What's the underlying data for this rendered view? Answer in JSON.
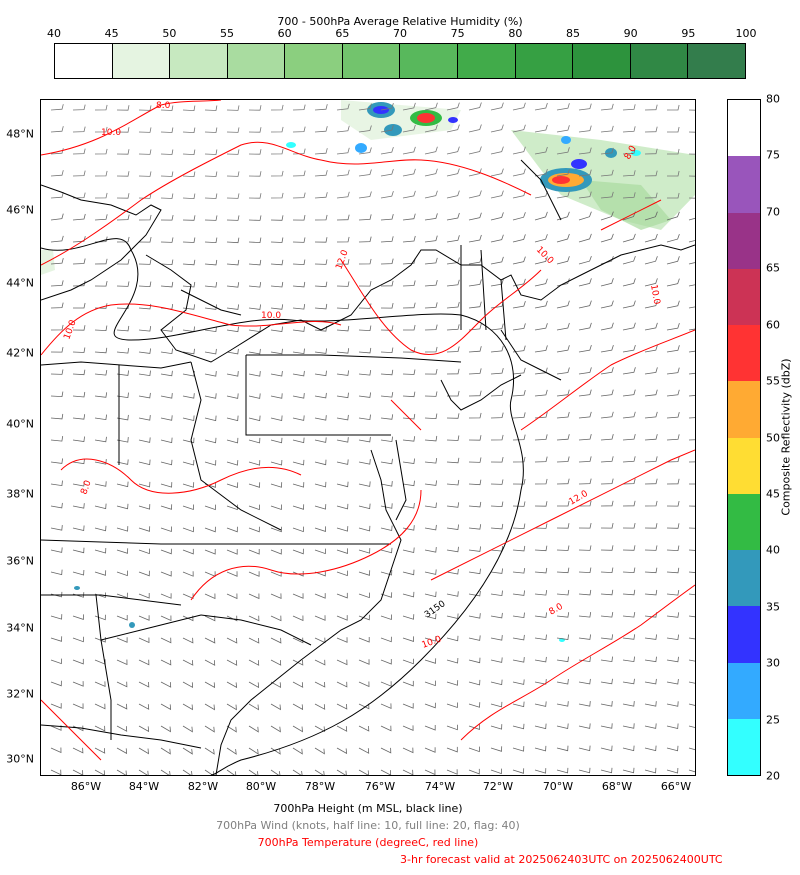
{
  "rh_colorbar": {
    "title": "700 - 500hPa Average Relative Humidity (%)",
    "ticks": [
      "40",
      "45",
      "50",
      "55",
      "60",
      "65",
      "70",
      "75",
      "80",
      "85",
      "90",
      "95",
      "100"
    ],
    "colors": [
      "#ffffff",
      "#e5f4e1",
      "#c7e9c0",
      "#a9dca0",
      "#8bcf7f",
      "#72c46d",
      "#58b85c",
      "#41ab4a",
      "#36a043",
      "#2d933d",
      "#308845",
      "#337d4c",
      "#336f4d"
    ]
  },
  "reflectivity_colorbar": {
    "label": "Composite Reflectivity (dbZ)",
    "ticks": [
      "20",
      "25",
      "30",
      "35",
      "40",
      "45",
      "50",
      "55",
      "60",
      "65",
      "70",
      "75",
      "80"
    ],
    "colors": [
      "#33ffff",
      "#33aaff",
      "#3333ff",
      "#3399bb",
      "#33bb44",
      "#ffdd33",
      "#ffaa33",
      "#ff3333",
      "#cc3355",
      "#993388",
      "#9955bb",
      "#ffffff"
    ]
  },
  "latitude_labels": [
    "30°N",
    "32°N",
    "34°N",
    "36°N",
    "38°N",
    "40°N",
    "42°N",
    "44°N",
    "46°N",
    "48°N"
  ],
  "longitude_labels": [
    "86°W",
    "84°W",
    "82°W",
    "80°W",
    "78°W",
    "76°W",
    "74°W",
    "72°W",
    "70°W",
    "68°W",
    "66°W"
  ],
  "contour_labels": {
    "height": "3150",
    "temperatures": [
      "10.0",
      "12.0",
      "8.0",
      "10.0",
      "12.0",
      "10.0",
      "8.0",
      "10.0",
      "8.0",
      "10.0",
      "10.0",
      "8.0"
    ]
  },
  "captions": {
    "height": "700hPa Height (m MSL, black line)",
    "wind": "700hPa Wind (knots, half line: 10, full line: 20, flag: 40)",
    "temperature": "700hPa Temperature (degreeC, red line)",
    "valid": "3-hr forecast valid at 2025062403UTC on 2025062400UTC"
  },
  "caption_colors": {
    "wind": "#808080",
    "temperature": "#ff0000",
    "valid": "#ff0000"
  }
}
